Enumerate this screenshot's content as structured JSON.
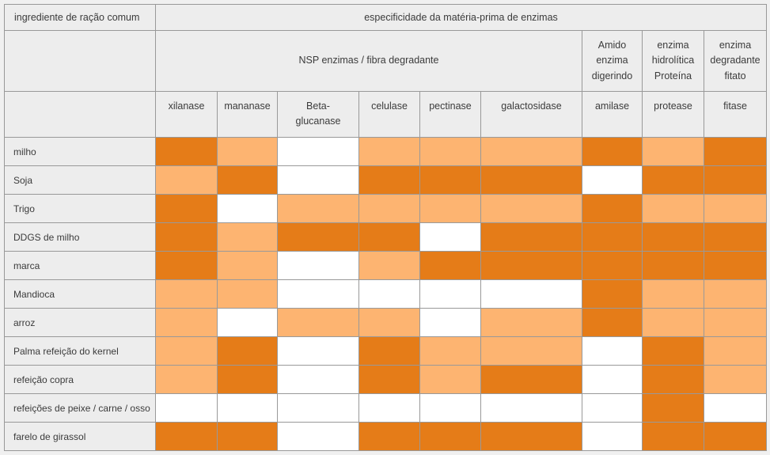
{
  "colors": {
    "dark": "#e57c18",
    "light": "#fdb471",
    "white": "#ffffff",
    "header_bg": "#ededed",
    "border": "#999999",
    "page_bg": "#f0f0f0",
    "text": "#3b3b3b"
  },
  "chart_data": {
    "type": "heatmap",
    "title": "especificidade da matéria-prima de enzimas",
    "row_header": "ingrediente de ração comum",
    "legend_position": "none",
    "cell_levels": [
      "dark",
      "light",
      "white"
    ],
    "column_groups": [
      {
        "label": "NSP enzimas / fibra degradante",
        "span": 6
      },
      {
        "label": "Amido\nenzima\ndigerindo",
        "span": 1
      },
      {
        "label": "enzima\nhidrolítica\nProteína",
        "span": 1
      },
      {
        "label": "enzima\ndegradante\nfitato",
        "span": 1
      }
    ],
    "columns": [
      "xilanase",
      "mananase",
      "Beta-\nglucanase",
      "celulase",
      "pectinase",
      "galactosidase",
      "amilase",
      "protease",
      "fitase"
    ],
    "rows": [
      {
        "label": "milho",
        "cells": [
          "dark",
          "light",
          "white",
          "light",
          "light",
          "light",
          "dark",
          "light",
          "dark"
        ]
      },
      {
        "label": "Soja",
        "cells": [
          "light",
          "dark",
          "white",
          "dark",
          "dark",
          "dark",
          "white",
          "dark",
          "dark"
        ]
      },
      {
        "label": "Trigo",
        "cells": [
          "dark",
          "white",
          "light",
          "light",
          "light",
          "light",
          "dark",
          "light",
          "light"
        ]
      },
      {
        "label": "DDGS de milho",
        "cells": [
          "dark",
          "light",
          "dark",
          "dark",
          "white",
          "dark",
          "dark",
          "dark",
          "dark"
        ]
      },
      {
        "label": "marca",
        "cells": [
          "dark",
          "light",
          "white",
          "light",
          "dark",
          "dark",
          "dark",
          "dark",
          "dark"
        ]
      },
      {
        "label": "Mandioca",
        "cells": [
          "light",
          "light",
          "white",
          "white",
          "white",
          "white",
          "dark",
          "light",
          "light"
        ]
      },
      {
        "label": "arroz",
        "cells": [
          "light",
          "white",
          "light",
          "light",
          "white",
          "light",
          "dark",
          "light",
          "light"
        ]
      },
      {
        "label": "Palma refeição do kernel",
        "cells": [
          "light",
          "dark",
          "white",
          "dark",
          "light",
          "light",
          "white",
          "dark",
          "light"
        ]
      },
      {
        "label": "refeição copra",
        "cells": [
          "light",
          "dark",
          "white",
          "dark",
          "light",
          "dark",
          "white",
          "dark",
          "light"
        ]
      },
      {
        "label": "refeições de peixe / carne / osso",
        "cells": [
          "white",
          "white",
          "white",
          "white",
          "white",
          "white",
          "white",
          "dark",
          "white"
        ]
      },
      {
        "label": "farelo de girassol",
        "cells": [
          "dark",
          "dark",
          "white",
          "dark",
          "dark",
          "dark",
          "white",
          "dark",
          "dark"
        ]
      }
    ]
  }
}
